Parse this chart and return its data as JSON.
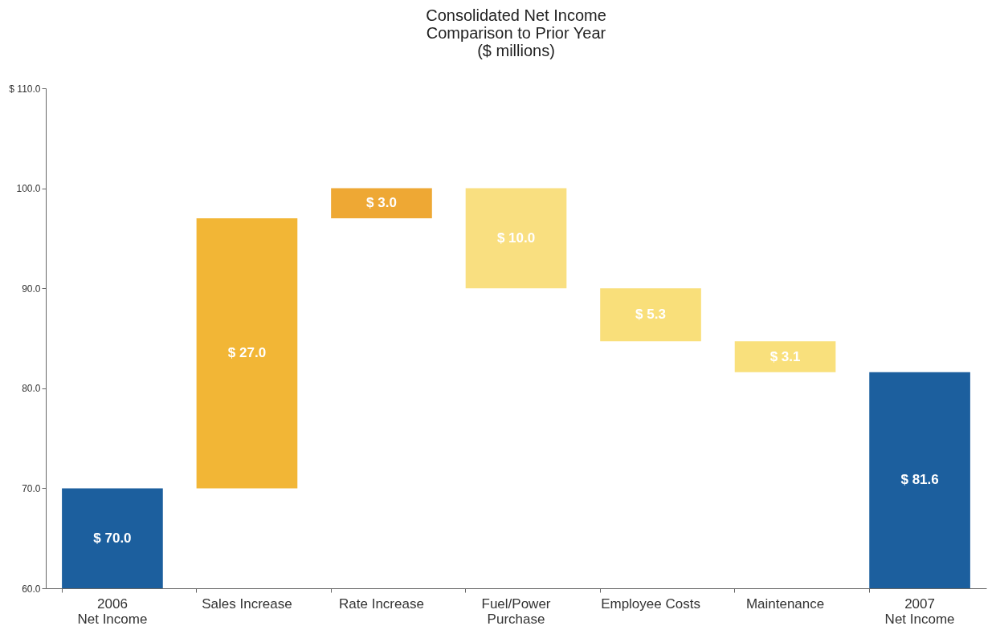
{
  "chart_data": {
    "type": "bar",
    "title": "Consolidated Net Income\nComparison to Prior Year\n($ millions)",
    "categories": [
      "2006\nNet Income",
      "Sales Increase",
      "Rate Increase",
      "Fuel/Power\nPurchase",
      "Employee Costs",
      "Maintenance",
      "2007\nNet Income"
    ],
    "values": [
      70.0,
      27.0,
      3.0,
      -10.0,
      -5.3,
      -3.1,
      81.6
    ],
    "base": [
      0,
      70.0,
      97.0,
      100.0,
      90.0,
      84.7,
      0
    ],
    "colors": [
      "#1c5f9e",
      "#f2b636",
      "#eea834",
      "#f9df80",
      "#f9df7a",
      "#f9e07c",
      "#1c5f9e"
    ],
    "value_labels": [
      "$ 70.0",
      "$ 27.0",
      "$ 3.0",
      "$ 10.0",
      "$ 5.3",
      "$ 3.1",
      "$ 81.6"
    ],
    "ylim": [
      60,
      110
    ],
    "yticks": [
      {
        "value": 60,
        "label": "60.0"
      },
      {
        "value": 70,
        "label": "70.0"
      },
      {
        "value": 80,
        "label": "80.0"
      },
      {
        "value": 90,
        "label": "90.0"
      },
      {
        "value": 100,
        "label": "100.0"
      },
      {
        "value": 110,
        "label": "$ 110.0"
      }
    ],
    "grid": false,
    "legend": false
  }
}
